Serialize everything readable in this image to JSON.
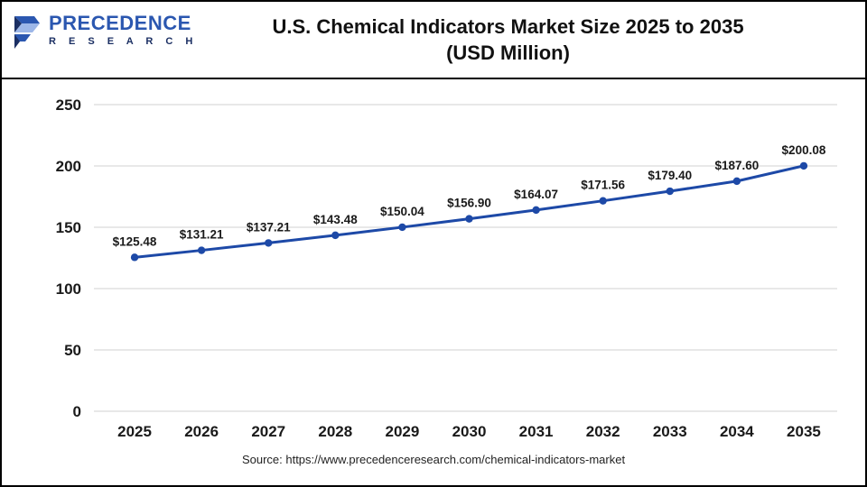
{
  "header": {
    "logo_line1": "PRECEDENCE",
    "logo_line2": "R E S E A R C H",
    "title_line1": "U.S. Chemical Indicators Market Size 2025 to 2035",
    "title_line2": "(USD Million)"
  },
  "footer": {
    "source": "Source: https://www.precedenceresearch.com/chemical-indicators-market"
  },
  "colors": {
    "line": "#1d49a7",
    "marker": "#1d49a7",
    "grid": "#d9d9d9",
    "tick_text": "#1a1a1a",
    "label_text": "#1a1a1a",
    "logo_blue": "#2b57b0",
    "logo_dark": "#1b2f63"
  },
  "chart_data": {
    "type": "line",
    "title": "U.S. Chemical Indicators Market Size 2025 to 2035 (USD Million)",
    "categories": [
      "2025",
      "2026",
      "2027",
      "2028",
      "2029",
      "2030",
      "2031",
      "2032",
      "2033",
      "2034",
      "2035"
    ],
    "values": [
      125.48,
      131.21,
      137.21,
      143.48,
      150.04,
      156.9,
      164.07,
      171.56,
      179.4,
      187.6,
      200.08
    ],
    "point_labels": [
      "$125.48",
      "$131.21",
      "$137.21",
      "$143.48",
      "$150.04",
      "$156.90",
      "$164.07",
      "$171.56",
      "$179.40",
      "$187.60",
      "$200.08"
    ],
    "xlabel": "",
    "ylabel": "",
    "ylim": [
      0,
      250
    ],
    "ytick_step": 50,
    "grid": true,
    "legend": "none"
  }
}
